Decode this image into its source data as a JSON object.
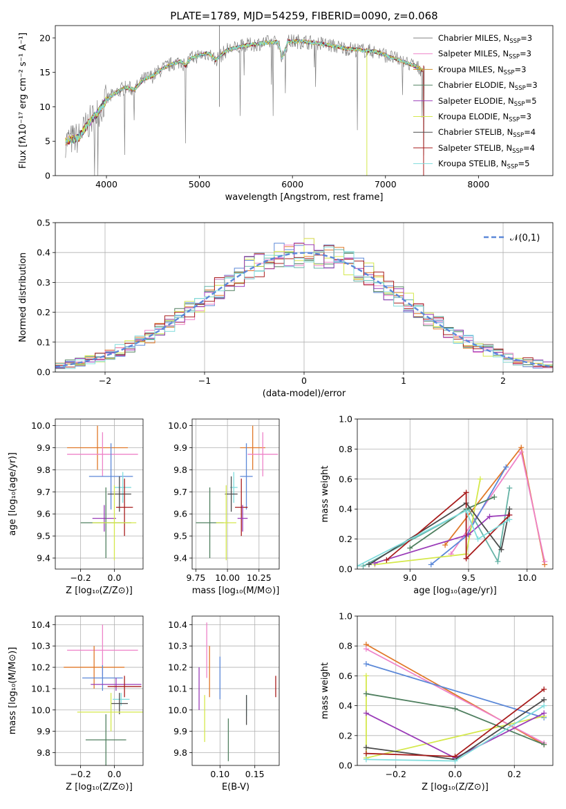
{
  "colors": [
    "#808080",
    "#ee82c8",
    "#cc8f2a",
    "#4f7f5f",
    "#9a3bb8",
    "#d4e84a",
    "#4a4a4a",
    "#a81c1c",
    "#7fdcdc",
    "#5b88d8",
    "#e07828",
    "#66b3a6"
  ],
  "chart_data": [
    {
      "type": "line",
      "title": "PLATE=1789, MJD=54259, FIBERID=0090, z=0.068",
      "xlabel": "wavelength [Angstrom, rest frame]",
      "ylabel": "Flux [fλ10⁻¹⁷ erg cm⁻² s⁻¹ A⁻¹]",
      "xlim": [
        3450,
        8800
      ],
      "ylim": [
        0,
        21.8
      ],
      "xticks": [
        "4000",
        "5000",
        "6000",
        "7000",
        "8000"
      ],
      "yticks": [
        "0",
        "5",
        "10",
        "15",
        "20"
      ],
      "grid": false,
      "legend_placement": "top-right",
      "series": [
        {
          "name": "Chabrier MILES, N_SSP=3",
          "legend_main": "Chabrier MILES, N",
          "legend_sub": "SSP",
          "legend_tail": "=3"
        },
        {
          "name": "Salpeter MILES, N_SSP=3",
          "legend_main": "Salpeter MILES, N",
          "legend_sub": "SSP",
          "legend_tail": "=3"
        },
        {
          "name": "Kroupa MILES, N_SSP=3",
          "legend_main": "Kroupa MILES, N",
          "legend_sub": "SSP",
          "legend_tail": "=3"
        },
        {
          "name": "Chabrier ELODIE, N_SSP=3",
          "legend_main": "Chabrier ELODIE, N",
          "legend_sub": "SSP",
          "legend_tail": "=3"
        },
        {
          "name": "Salpeter ELODIE, N_SSP=5",
          "legend_main": "Salpeter ELODIE, N",
          "legend_sub": "SSP",
          "legend_tail": "=5"
        },
        {
          "name": "Kroupa ELODIE, N_SSP=3",
          "legend_main": "Kroupa ELODIE, N",
          "legend_sub": "SSP",
          "legend_tail": "=3"
        },
        {
          "name": "Chabrier STELIB, N_SSP=4",
          "legend_main": "Chabrier STELIB, N",
          "legend_sub": "SSP",
          "legend_tail": "=4"
        },
        {
          "name": "Salpeter STELIB, N_SSP=4",
          "legend_main": "Salpeter STELIB, N",
          "legend_sub": "SSP",
          "legend_tail": "=4"
        },
        {
          "name": "Kroupa STELIB, N_SSP=5",
          "legend_main": "Kroupa STELIB, N",
          "legend_sub": "SSP",
          "legend_tail": "=5"
        }
      ],
      "continuum": [
        [
          3560,
          5
        ],
        [
          3700,
          5.5
        ],
        [
          3800,
          7.5
        ],
        [
          3900,
          9
        ],
        [
          4000,
          11
        ],
        [
          4100,
          12
        ],
        [
          4200,
          12.8
        ],
        [
          4300,
          12.5
        ],
        [
          4400,
          14
        ],
        [
          4500,
          14.5
        ],
        [
          4600,
          15.5
        ],
        [
          4700,
          16.2
        ],
        [
          4800,
          16.6
        ],
        [
          4850,
          16
        ],
        [
          4900,
          17
        ],
        [
          5000,
          17.5
        ],
        [
          5100,
          17.8
        ],
        [
          5175,
          16.8
        ],
        [
          5300,
          18.3
        ],
        [
          5400,
          18.6
        ],
        [
          5500,
          18.9
        ],
        [
          5700,
          19.3
        ],
        [
          5850,
          19.4
        ],
        [
          5890,
          17
        ],
        [
          5950,
          19.5
        ],
        [
          6100,
          19.5
        ],
        [
          6300,
          19.2
        ],
        [
          6563,
          18.5
        ],
        [
          6700,
          18.3
        ],
        [
          6900,
          18
        ],
        [
          7100,
          17
        ],
        [
          7300,
          16
        ],
        [
          7420,
          15.2
        ]
      ]
    },
    {
      "type": "histogram",
      "xlabel": "(data-model)/error",
      "ylabel": "Normed distribution",
      "xlim": [
        -2.5,
        2.5
      ],
      "ylim": [
        0,
        0.5
      ],
      "xticks": [
        "−2",
        "−1",
        "0",
        "1",
        "2"
      ],
      "yticks": [
        "0.0",
        "0.1",
        "0.2",
        "0.3",
        "0.4",
        "0.5"
      ],
      "grid": true,
      "bin_width": 0.1,
      "legend_placement": "top-right",
      "reference_curve": {
        "label": "𝒩(0,1)",
        "mean": 0,
        "sd": 1
      }
    },
    {
      "type": "scatter",
      "xlabel": "Z [log₁₀(Z/Z⊙)]",
      "ylabel": "age  [log₁₀(age/yr)]",
      "xlim": [
        -0.35,
        0.17
      ],
      "ylim": [
        9.35,
        10.03
      ],
      "xticks": [
        "−0.2",
        "0.0"
      ],
      "yticks": [
        "9.4",
        "9.5",
        "9.6",
        "9.7",
        "9.8",
        "9.9",
        "10.0"
      ],
      "grid": true,
      "points": [
        {
          "x": -0.1,
          "xerr": 0.18,
          "y": 9.9,
          "yerr": 0.1,
          "c": 10
        },
        {
          "x": -0.07,
          "xerr": 0.21,
          "y": 9.87,
          "yerr": 0.1,
          "c": 1
        },
        {
          "x": -0.02,
          "xerr": 0.13,
          "y": 9.77,
          "yerr": 0.15,
          "c": 9
        },
        {
          "x": 0.05,
          "xerr": 0.05,
          "y": 9.72,
          "yerr": 0.07,
          "c": 8
        },
        {
          "x": 0.03,
          "xerr": 0.07,
          "y": 9.69,
          "yerr": 0.08,
          "c": 6
        },
        {
          "x": 0.06,
          "xerr": 0.05,
          "y": 9.63,
          "yerr": 0.13,
          "c": 7
        },
        {
          "x": -0.06,
          "xerr": 0.07,
          "y": 9.58,
          "yerr": 0.06,
          "c": 4
        },
        {
          "x": -0.05,
          "xerr": 0.15,
          "y": 9.56,
          "yerr": 0.16,
          "c": 3
        },
        {
          "x": 0.0,
          "xerr": 0.13,
          "y": 9.56,
          "yerr": 0.17,
          "c": 5
        }
      ]
    },
    {
      "type": "scatter",
      "xlabel": "mass [log₁₀(M/M⊙)]",
      "xlim": [
        9.72,
        10.41
      ],
      "ylim": [
        9.35,
        10.03
      ],
      "xticks": [
        "9.75",
        "10.00",
        "10.25"
      ],
      "yticks": [
        "9.4",
        "9.5",
        "9.6",
        "9.7",
        "9.8",
        "9.9",
        "10.0"
      ],
      "grid": true,
      "points": [
        {
          "x": 10.2,
          "xerr": 0.1,
          "y": 9.9,
          "yerr": 0.1,
          "c": 10
        },
        {
          "x": 10.28,
          "xerr": 0.12,
          "y": 9.87,
          "yerr": 0.1,
          "c": 1
        },
        {
          "x": 10.15,
          "xerr": 0.05,
          "y": 9.77,
          "yerr": 0.15,
          "c": 9
        },
        {
          "x": 10.05,
          "xerr": 0.03,
          "y": 9.72,
          "yerr": 0.07,
          "c": 8
        },
        {
          "x": 10.03,
          "xerr": 0.05,
          "y": 9.69,
          "yerr": 0.08,
          "c": 6
        },
        {
          "x": 10.11,
          "xerr": 0.05,
          "y": 9.63,
          "yerr": 0.13,
          "c": 7
        },
        {
          "x": 10.12,
          "xerr": 0.04,
          "y": 9.58,
          "yerr": 0.06,
          "c": 4
        },
        {
          "x": 9.86,
          "xerr": 0.11,
          "y": 9.56,
          "yerr": 0.16,
          "c": 3
        },
        {
          "x": 9.99,
          "xerr": 0.08,
          "y": 9.56,
          "yerr": 0.17,
          "c": 5
        }
      ]
    },
    {
      "type": "line",
      "xlabel": "age  [log₁₀(age/yr)]",
      "ylabel": "mass weight",
      "xlim": [
        8.55,
        10.22
      ],
      "ylim": [
        0,
        1
      ],
      "xticks": [
        "9.0",
        "9.5",
        "10.0"
      ],
      "yticks": [
        "0.0",
        "0.2",
        "0.4",
        "0.6",
        "0.8",
        "1.0"
      ],
      "grid": true,
      "series": [
        {
          "c": 10,
          "x": [
            9.3,
            9.95,
            10.15
          ],
          "y": [
            0.16,
            0.81,
            0.03
          ]
        },
        {
          "c": 1,
          "x": [
            9.35,
            9.95,
            10.15
          ],
          "y": [
            0.1,
            0.78,
            0.05
          ]
        },
        {
          "c": 9,
          "x": [
            9.18,
            9.48,
            9.82
          ],
          "y": [
            0.03,
            0.22,
            0.68
          ]
        },
        {
          "c": 11,
          "x": [
            8.6,
            9.5,
            9.75,
            9.85
          ],
          "y": [
            0.02,
            0.4,
            0.05,
            0.54
          ]
        },
        {
          "c": 3,
          "x": [
            9.0,
            9.48,
            9.72
          ],
          "y": [
            0.14,
            0.4,
            0.48
          ]
        },
        {
          "c": 5,
          "x": [
            8.7,
            9.48,
            9.6
          ],
          "y": [
            0.03,
            0.1,
            0.6
          ]
        },
        {
          "c": 4,
          "x": [
            8.7,
            9.5,
            9.68,
            9.85
          ],
          "y": [
            0.04,
            0.23,
            0.35,
            0.36
          ]
        },
        {
          "c": 6,
          "x": [
            8.65,
            9.48,
            9.78,
            9.85
          ],
          "y": [
            0.03,
            0.44,
            0.13,
            0.4
          ]
        },
        {
          "c": 7,
          "x": [
            8.8,
            9.48,
            9.48,
            9.85
          ],
          "y": [
            0.06,
            0.51,
            0.07,
            0.36
          ]
        },
        {
          "c": 8,
          "x": [
            8.55,
            9.48,
            9.58,
            9.85
          ],
          "y": [
            0.02,
            0.39,
            0.2,
            0.33
          ]
        }
      ]
    },
    {
      "type": "scatter",
      "xlabel": "Z [log₁₀(Z/Z⊙)]",
      "ylabel": "mass [log₁₀(M/M⊙)]",
      "xlim": [
        -0.35,
        0.17
      ],
      "ylim": [
        9.74,
        10.44
      ],
      "xticks": [
        "−0.2",
        "0.0"
      ],
      "yticks": [
        "9.8",
        "9.9",
        "10.0",
        "10.1",
        "10.2",
        "10.3",
        "10.4"
      ],
      "grid": true,
      "points": [
        {
          "x": -0.07,
          "xerr": 0.21,
          "y": 10.28,
          "yerr": 0.12,
          "c": 1
        },
        {
          "x": -0.12,
          "xerr": 0.18,
          "y": 10.2,
          "yerr": 0.1,
          "c": 10
        },
        {
          "x": -0.07,
          "xerr": 0.12,
          "y": 10.15,
          "yerr": 0.06,
          "c": 9
        },
        {
          "x": 0.01,
          "xerr": 0.15,
          "y": 10.12,
          "yerr": 0.03,
          "c": 4
        },
        {
          "x": 0.06,
          "xerr": 0.1,
          "y": 10.11,
          "yerr": 0.05,
          "c": 7
        },
        {
          "x": 0.04,
          "xerr": 0.05,
          "y": 10.05,
          "yerr": 0.03,
          "c": 8
        },
        {
          "x": 0.03,
          "xerr": 0.05,
          "y": 10.03,
          "yerr": 0.05,
          "c": 6
        },
        {
          "x": -0.02,
          "xerr": 0.2,
          "y": 9.99,
          "yerr": 0.09,
          "c": 5
        },
        {
          "x": -0.05,
          "xerr": 0.12,
          "y": 9.86,
          "yerr": 0.12,
          "c": 3
        }
      ]
    },
    {
      "type": "scatter",
      "xlabel": "E(B-V)",
      "xlim": [
        0.06,
        0.185
      ],
      "ylim": [
        9.74,
        10.44
      ],
      "xticks": [
        "0.10",
        "0.15"
      ],
      "yticks": [
        "9.8",
        "9.9",
        "10.0",
        "10.1",
        "10.2",
        "10.3",
        "10.4"
      ],
      "grid": true,
      "points": [
        {
          "x": 0.07,
          "y": 10.1,
          "yerr": 0.1,
          "c": 4
        },
        {
          "x": 0.078,
          "y": 9.96,
          "yerr": 0.11,
          "c": 5
        },
        {
          "x": 0.081,
          "y": 10.28,
          "yerr": 0.13,
          "c": 1
        },
        {
          "x": 0.085,
          "y": 10.18,
          "yerr": 0.12,
          "c": 10
        },
        {
          "x": 0.1,
          "y": 10.15,
          "yerr": 0.1,
          "c": 9
        },
        {
          "x": 0.112,
          "y": 9.86,
          "yerr": 0.1,
          "c": 3
        },
        {
          "x": 0.138,
          "y": 10.02,
          "yerr": 0.05,
          "c": 8
        },
        {
          "x": 0.138,
          "y": 10.0,
          "yerr": 0.07,
          "c": 6
        },
        {
          "x": 0.18,
          "y": 10.11,
          "yerr": 0.05,
          "c": 7
        }
      ]
    },
    {
      "type": "line",
      "xlabel": "Z [log₁₀(Z/Z⊙)]",
      "ylabel": "mass weight",
      "xlim": [
        -0.33,
        0.33
      ],
      "ylim": [
        0,
        1
      ],
      "xticks": [
        "−0.2",
        "0.0",
        "0.2"
      ],
      "yticks": [
        "0.0",
        "0.2",
        "0.4",
        "0.6",
        "0.8",
        "1.0"
      ],
      "grid": true,
      "series": [
        {
          "c": 10,
          "x": [
            -0.3,
            0.3
          ],
          "y": [
            0.81,
            0.14
          ]
        },
        {
          "c": 1,
          "x": [
            -0.3,
            0.3
          ],
          "y": [
            0.78,
            0.15
          ]
        },
        {
          "c": 9,
          "x": [
            -0.3,
            0.3
          ],
          "y": [
            0.68,
            0.32
          ]
        },
        {
          "c": 5,
          "x": [
            -0.3,
            -0.3,
            0.3
          ],
          "y": [
            0.6,
            0.05,
            0.33
          ]
        },
        {
          "c": 3,
          "x": [
            -0.3,
            0.0,
            0.3
          ],
          "y": [
            0.48,
            0.38,
            0.14
          ]
        },
        {
          "c": 4,
          "x": [
            -0.3,
            0.0,
            0.3
          ],
          "y": [
            0.35,
            0.05,
            0.35
          ]
        },
        {
          "c": 6,
          "x": [
            -0.3,
            0.0,
            0.3
          ],
          "y": [
            0.12,
            0.04,
            0.44
          ]
        },
        {
          "c": 7,
          "x": [
            -0.3,
            0.0,
            0.3
          ],
          "y": [
            0.08,
            0.06,
            0.51
          ]
        },
        {
          "c": 8,
          "x": [
            -0.3,
            0.0,
            0.3
          ],
          "y": [
            0.04,
            0.03,
            0.4
          ]
        }
      ]
    }
  ]
}
